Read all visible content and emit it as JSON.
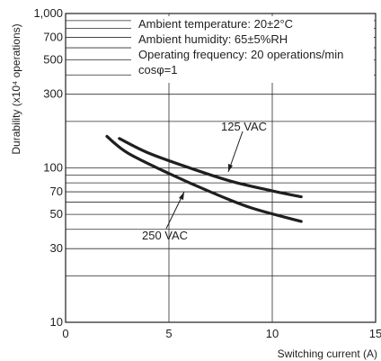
{
  "chart_data": {
    "type": "line",
    "title": "",
    "xlabel": "Switching current (A)",
    "ylabel": "Durability (x10⁴ operations)",
    "x_scale": "linear",
    "y_scale": "log",
    "xlim": [
      0,
      15
    ],
    "ylim": [
      10,
      1000
    ],
    "x_ticks": [
      0,
      5,
      10,
      15
    ],
    "x_tick_labels": [
      "0",
      "5",
      "10",
      "15"
    ],
    "y_tick_labels": [
      {
        "value": 10,
        "label": "10"
      },
      {
        "value": 30,
        "label": "30"
      },
      {
        "value": 50,
        "label": "50"
      },
      {
        "value": 70,
        "label": "70"
      },
      {
        "value": 100,
        "label": "100"
      },
      {
        "value": 300,
        "label": "300"
      },
      {
        "value": 500,
        "label": "500"
      },
      {
        "value": 700,
        "label": "700"
      },
      {
        "value": 1000,
        "label": "1,000"
      }
    ],
    "y_gridlines": [
      20,
      30,
      40,
      50,
      60,
      70,
      80,
      90,
      100,
      200,
      300,
      400,
      500,
      600,
      700,
      800,
      900
    ],
    "grid": true,
    "conditions": [
      "Ambient temperature: 20±2°C",
      "Ambient humidity: 65±5%RH",
      "Operating frequency: 20 operations/min",
      "cosφ=1"
    ],
    "series": [
      {
        "name": "125 VAC",
        "color": "#1f1f1f",
        "x": [
          2.6,
          4,
          6,
          8,
          10,
          11.4
        ],
        "y": [
          155,
          125,
          100,
          82,
          71,
          65
        ]
      },
      {
        "name": "250 VAC",
        "color": "#1f1f1f",
        "x": [
          2,
          3,
          5,
          7,
          9,
          11.4
        ],
        "y": [
          160,
          125,
          92,
          70,
          55,
          45
        ]
      }
    ]
  }
}
